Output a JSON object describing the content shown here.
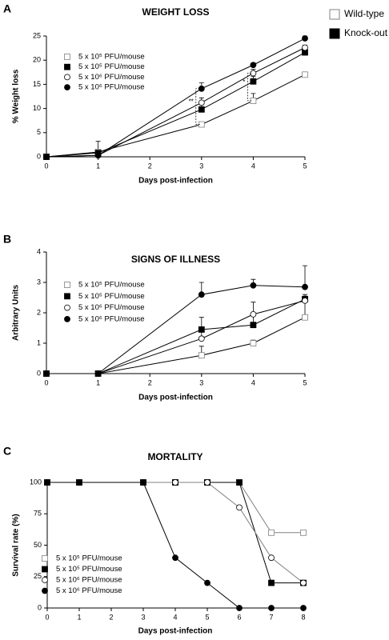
{
  "legend": [
    {
      "label": "Wild-type",
      "fill": "#ffffff"
    },
    {
      "label": "Knock-out",
      "fill": "#000000"
    }
  ],
  "chart_data": [
    {
      "type": "line",
      "panel": "A",
      "title": "WEIGHT LOSS",
      "x_label": "Days post-infection",
      "y_label": "% Weight loss",
      "x": [
        0,
        1,
        3,
        4,
        5
      ],
      "xlim": [
        0,
        5
      ],
      "xticks": [
        0,
        1,
        2,
        3,
        4,
        5
      ],
      "ylim": [
        0,
        25
      ],
      "yticks": [
        0,
        5,
        10,
        15,
        20,
        25
      ],
      "legend_position": "upper left",
      "series": [
        {
          "name": "5 x 10⁵ PFU/mouse",
          "marker": "square",
          "fill": "#ffffff",
          "color": "#000000",
          "values": [
            0,
            1.0,
            6.7,
            11.6,
            17.0
          ],
          "errors": [
            0,
            2.2,
            0.3,
            1.5,
            0.5
          ]
        },
        {
          "name": "5 x 10⁵ PFU/mouse",
          "marker": "square",
          "fill": "#000000",
          "color": "#000000",
          "values": [
            0,
            0.8,
            9.8,
            15.6,
            21.6
          ],
          "errors": [
            0,
            0.5,
            1.5,
            1.0,
            0.5
          ]
        },
        {
          "name": "5 x 10⁶ PFU/mouse",
          "marker": "circle",
          "fill": "#ffffff",
          "color": "#000000",
          "values": [
            0,
            0.3,
            11.2,
            17.3,
            22.6
          ],
          "errors": [
            0,
            0.3,
            1.0,
            0.8,
            0.5
          ]
        },
        {
          "name": "5 x 10⁶ PFU/mouse",
          "marker": "circle",
          "fill": "#000000",
          "color": "#000000",
          "values": [
            0,
            0.3,
            14.1,
            19.0,
            24.5
          ],
          "errors": [
            0,
            0.2,
            1.2,
            0.4,
            0.5
          ]
        }
      ],
      "annotations": [
        {
          "text": "**",
          "x": 3,
          "series": [
            0,
            3
          ]
        },
        {
          "text": "*",
          "x": 4,
          "series": [
            0,
            2
          ]
        }
      ]
    },
    {
      "type": "line",
      "panel": "B",
      "title": "SIGNS OF ILLNESS",
      "x_label": "Days post-infection",
      "y_label": "Arbitrary Units",
      "x": [
        0,
        1,
        3,
        4,
        5
      ],
      "xlim": [
        0,
        5
      ],
      "xticks": [
        0,
        1,
        2,
        3,
        4,
        5
      ],
      "ylim": [
        0,
        4
      ],
      "yticks": [
        0,
        1,
        2,
        3,
        4
      ],
      "legend_position": "upper left",
      "series": [
        {
          "name": "5 x 10⁵ PFU/mouse",
          "marker": "square",
          "fill": "#ffffff",
          "color": "#000000",
          "values": [
            0,
            0,
            0.6,
            1.0,
            1.85
          ],
          "errors": [
            0,
            0,
            0.3,
            0.1,
            0.5
          ]
        },
        {
          "name": "5 x 10⁵ PFU/mouse",
          "marker": "square",
          "fill": "#000000",
          "color": "#000000",
          "values": [
            0,
            0,
            1.45,
            1.6,
            2.45
          ],
          "errors": [
            0,
            0,
            0.4,
            0.4,
            0.1
          ]
        },
        {
          "name": "5 x 10⁶ PFU/mouse",
          "marker": "circle",
          "fill": "#ffffff",
          "color": "#000000",
          "values": [
            0,
            0,
            1.15,
            1.95,
            2.4
          ],
          "errors": [
            0,
            0,
            0.3,
            0.4,
            0.2
          ]
        },
        {
          "name": "5 x 10⁶ PFU/mouse",
          "marker": "circle",
          "fill": "#000000",
          "color": "#000000",
          "values": [
            0,
            0,
            2.6,
            2.9,
            2.85
          ],
          "errors": [
            0,
            0,
            0.4,
            0.2,
            0.7
          ]
        }
      ]
    },
    {
      "type": "line",
      "panel": "C",
      "title": "MORTALITY",
      "x_label": "Days post-infection",
      "y_label": "Survival rate (%)",
      "x": [
        0,
        1,
        3,
        4,
        5,
        6,
        7,
        8
      ],
      "xlim": [
        0,
        8
      ],
      "xticks": [
        0,
        1,
        2,
        3,
        4,
        5,
        6,
        7,
        8
      ],
      "ylim": [
        0,
        100
      ],
      "yticks": [
        0,
        25,
        50,
        75,
        100
      ],
      "legend_position": "lower left",
      "series": [
        {
          "name": "5 x 10⁵ PFU/mouse",
          "marker": "square",
          "fill": "#ffffff",
          "color": "#808080",
          "values": [
            100,
            100,
            100,
            100,
            100,
            100,
            60,
            60
          ]
        },
        {
          "name": "5 x 10⁵ PFU/mouse",
          "marker": "square",
          "fill": "#000000",
          "color": "#000000",
          "values": [
            100,
            100,
            100,
            100,
            100,
            100,
            20,
            20
          ]
        },
        {
          "name": "5 x 10⁶ PFU/mouse",
          "marker": "circle",
          "fill": "#ffffff",
          "color": "#808080",
          "values": [
            100,
            100,
            100,
            100,
            100,
            80,
            40,
            20
          ]
        },
        {
          "name": "5 x 10⁶ PFU/mouse",
          "marker": "circle",
          "fill": "#000000",
          "color": "#000000",
          "values": [
            100,
            100,
            100,
            40,
            20,
            0,
            0,
            0
          ]
        }
      ]
    }
  ]
}
